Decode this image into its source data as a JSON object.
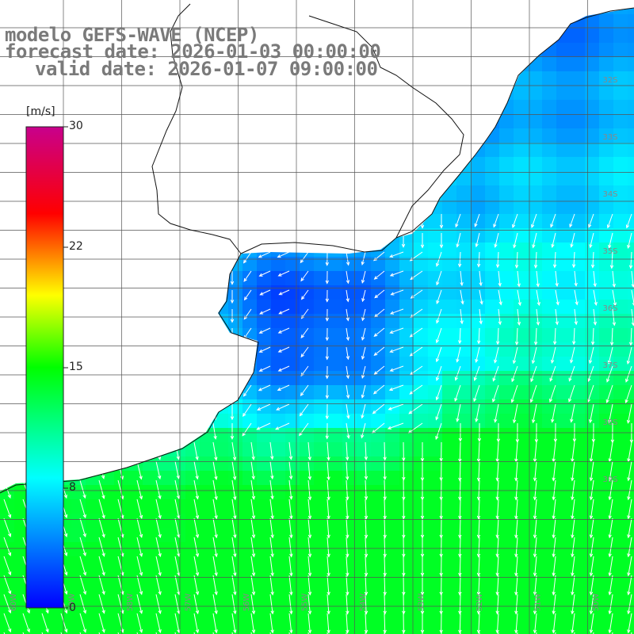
{
  "title": {
    "line1": "modelo GEFS-WAVE (NCEP)",
    "line2": "forecast date: 2026-01-03 00:00:00",
    "line3": "valid date: 2026-01-07 09:00:00"
  },
  "colorbar": {
    "unit": "[m/s]",
    "min": 0,
    "max": 30,
    "ticks": [
      "30",
      "22",
      "15",
      "8",
      "0"
    ]
  },
  "colors": {
    "land": "#ffffff",
    "grid": "#555555",
    "coast": "#111111",
    "arrow": "#ffffff",
    "label": "#888888"
  },
  "latitude_labels": [
    "32S",
    "33S",
    "34S",
    "35S",
    "36S",
    "37S",
    "38S",
    "39S"
  ],
  "longitude_labels": [
    "60W",
    "59W",
    "58W",
    "57W",
    "56W",
    "55W",
    "54W",
    "53W",
    "52W",
    "51W",
    "50W"
  ],
  "map_data": {
    "variable": "wind speed",
    "units": "m/s",
    "value_range": [
      0,
      30
    ]
  }
}
